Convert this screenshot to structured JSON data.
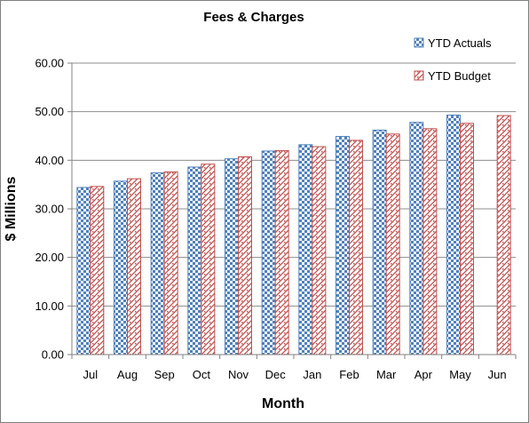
{
  "chart_data": {
    "type": "bar",
    "title": "Fees & Charges",
    "xlabel": "Month",
    "ylabel": "$ Millions",
    "categories": [
      "Jul",
      "Aug",
      "Sep",
      "Oct",
      "Nov",
      "Dec",
      "Jan",
      "Feb",
      "Mar",
      "Apr",
      "May",
      "Jun"
    ],
    "series": [
      {
        "name": "YTD Actuals",
        "values": [
          34.4,
          35.7,
          37.4,
          38.6,
          40.3,
          41.9,
          43.2,
          44.9,
          46.2,
          47.8,
          49.3,
          null
        ],
        "color": "#4f81bd"
      },
      {
        "name": "YTD Budget",
        "values": [
          34.6,
          36.2,
          37.6,
          39.2,
          40.7,
          42.0,
          42.8,
          44.1,
          45.4,
          46.5,
          47.6,
          49.2
        ],
        "color": "#c0504d"
      }
    ],
    "ylim": [
      0,
      60
    ],
    "yticks": [
      "0.00",
      "10.00",
      "20.00",
      "30.00",
      "40.00",
      "50.00",
      "60.00"
    ],
    "grid": true,
    "legend": "top-right"
  }
}
